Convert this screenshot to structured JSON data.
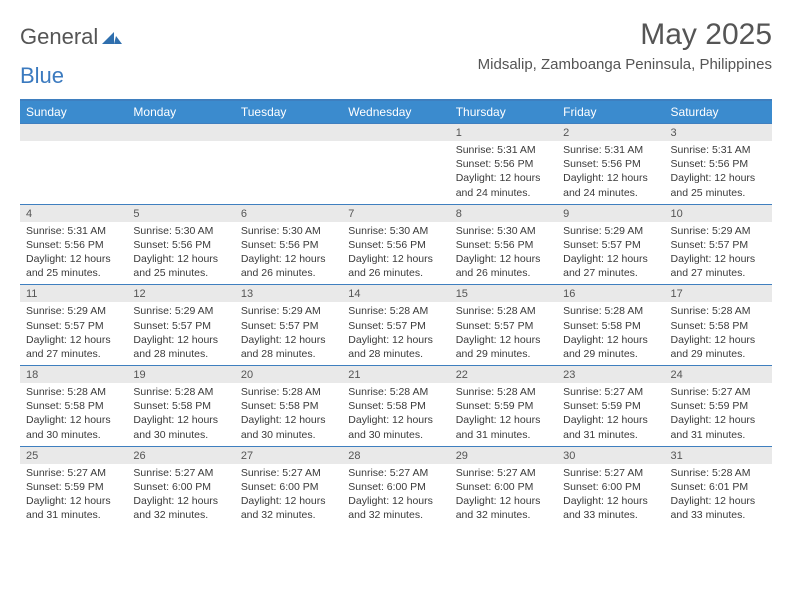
{
  "logo": {
    "text_a": "General",
    "text_b": "Blue"
  },
  "title": "May 2025",
  "subtitle": "Midsalip, Zamboanga Peninsula, Philippines",
  "colors": {
    "header_bar": "#3b8bce",
    "rule": "#3f7fbf",
    "daynum_bg": "#e9e9e9",
    "text": "#3a3a3a",
    "logo_blue": "#3b7abf"
  },
  "days_of_week": [
    "Sunday",
    "Monday",
    "Tuesday",
    "Wednesday",
    "Thursday",
    "Friday",
    "Saturday"
  ],
  "weeks": [
    [
      {
        "n": "",
        "sr": "",
        "ss": "",
        "dl": ""
      },
      {
        "n": "",
        "sr": "",
        "ss": "",
        "dl": ""
      },
      {
        "n": "",
        "sr": "",
        "ss": "",
        "dl": ""
      },
      {
        "n": "",
        "sr": "",
        "ss": "",
        "dl": ""
      },
      {
        "n": "1",
        "sr": "Sunrise: 5:31 AM",
        "ss": "Sunset: 5:56 PM",
        "dl": "Daylight: 12 hours and 24 minutes."
      },
      {
        "n": "2",
        "sr": "Sunrise: 5:31 AM",
        "ss": "Sunset: 5:56 PM",
        "dl": "Daylight: 12 hours and 24 minutes."
      },
      {
        "n": "3",
        "sr": "Sunrise: 5:31 AM",
        "ss": "Sunset: 5:56 PM",
        "dl": "Daylight: 12 hours and 25 minutes."
      }
    ],
    [
      {
        "n": "4",
        "sr": "Sunrise: 5:31 AM",
        "ss": "Sunset: 5:56 PM",
        "dl": "Daylight: 12 hours and 25 minutes."
      },
      {
        "n": "5",
        "sr": "Sunrise: 5:30 AM",
        "ss": "Sunset: 5:56 PM",
        "dl": "Daylight: 12 hours and 25 minutes."
      },
      {
        "n": "6",
        "sr": "Sunrise: 5:30 AM",
        "ss": "Sunset: 5:56 PM",
        "dl": "Daylight: 12 hours and 26 minutes."
      },
      {
        "n": "7",
        "sr": "Sunrise: 5:30 AM",
        "ss": "Sunset: 5:56 PM",
        "dl": "Daylight: 12 hours and 26 minutes."
      },
      {
        "n": "8",
        "sr": "Sunrise: 5:30 AM",
        "ss": "Sunset: 5:56 PM",
        "dl": "Daylight: 12 hours and 26 minutes."
      },
      {
        "n": "9",
        "sr": "Sunrise: 5:29 AM",
        "ss": "Sunset: 5:57 PM",
        "dl": "Daylight: 12 hours and 27 minutes."
      },
      {
        "n": "10",
        "sr": "Sunrise: 5:29 AM",
        "ss": "Sunset: 5:57 PM",
        "dl": "Daylight: 12 hours and 27 minutes."
      }
    ],
    [
      {
        "n": "11",
        "sr": "Sunrise: 5:29 AM",
        "ss": "Sunset: 5:57 PM",
        "dl": "Daylight: 12 hours and 27 minutes."
      },
      {
        "n": "12",
        "sr": "Sunrise: 5:29 AM",
        "ss": "Sunset: 5:57 PM",
        "dl": "Daylight: 12 hours and 28 minutes."
      },
      {
        "n": "13",
        "sr": "Sunrise: 5:29 AM",
        "ss": "Sunset: 5:57 PM",
        "dl": "Daylight: 12 hours and 28 minutes."
      },
      {
        "n": "14",
        "sr": "Sunrise: 5:28 AM",
        "ss": "Sunset: 5:57 PM",
        "dl": "Daylight: 12 hours and 28 minutes."
      },
      {
        "n": "15",
        "sr": "Sunrise: 5:28 AM",
        "ss": "Sunset: 5:57 PM",
        "dl": "Daylight: 12 hours and 29 minutes."
      },
      {
        "n": "16",
        "sr": "Sunrise: 5:28 AM",
        "ss": "Sunset: 5:58 PM",
        "dl": "Daylight: 12 hours and 29 minutes."
      },
      {
        "n": "17",
        "sr": "Sunrise: 5:28 AM",
        "ss": "Sunset: 5:58 PM",
        "dl": "Daylight: 12 hours and 29 minutes."
      }
    ],
    [
      {
        "n": "18",
        "sr": "Sunrise: 5:28 AM",
        "ss": "Sunset: 5:58 PM",
        "dl": "Daylight: 12 hours and 30 minutes."
      },
      {
        "n": "19",
        "sr": "Sunrise: 5:28 AM",
        "ss": "Sunset: 5:58 PM",
        "dl": "Daylight: 12 hours and 30 minutes."
      },
      {
        "n": "20",
        "sr": "Sunrise: 5:28 AM",
        "ss": "Sunset: 5:58 PM",
        "dl": "Daylight: 12 hours and 30 minutes."
      },
      {
        "n": "21",
        "sr": "Sunrise: 5:28 AM",
        "ss": "Sunset: 5:58 PM",
        "dl": "Daylight: 12 hours and 30 minutes."
      },
      {
        "n": "22",
        "sr": "Sunrise: 5:28 AM",
        "ss": "Sunset: 5:59 PM",
        "dl": "Daylight: 12 hours and 31 minutes."
      },
      {
        "n": "23",
        "sr": "Sunrise: 5:27 AM",
        "ss": "Sunset: 5:59 PM",
        "dl": "Daylight: 12 hours and 31 minutes."
      },
      {
        "n": "24",
        "sr": "Sunrise: 5:27 AM",
        "ss": "Sunset: 5:59 PM",
        "dl": "Daylight: 12 hours and 31 minutes."
      }
    ],
    [
      {
        "n": "25",
        "sr": "Sunrise: 5:27 AM",
        "ss": "Sunset: 5:59 PM",
        "dl": "Daylight: 12 hours and 31 minutes."
      },
      {
        "n": "26",
        "sr": "Sunrise: 5:27 AM",
        "ss": "Sunset: 6:00 PM",
        "dl": "Daylight: 12 hours and 32 minutes."
      },
      {
        "n": "27",
        "sr": "Sunrise: 5:27 AM",
        "ss": "Sunset: 6:00 PM",
        "dl": "Daylight: 12 hours and 32 minutes."
      },
      {
        "n": "28",
        "sr": "Sunrise: 5:27 AM",
        "ss": "Sunset: 6:00 PM",
        "dl": "Daylight: 12 hours and 32 minutes."
      },
      {
        "n": "29",
        "sr": "Sunrise: 5:27 AM",
        "ss": "Sunset: 6:00 PM",
        "dl": "Daylight: 12 hours and 32 minutes."
      },
      {
        "n": "30",
        "sr": "Sunrise: 5:27 AM",
        "ss": "Sunset: 6:00 PM",
        "dl": "Daylight: 12 hours and 33 minutes."
      },
      {
        "n": "31",
        "sr": "Sunrise: 5:28 AM",
        "ss": "Sunset: 6:01 PM",
        "dl": "Daylight: 12 hours and 33 minutes."
      }
    ]
  ]
}
